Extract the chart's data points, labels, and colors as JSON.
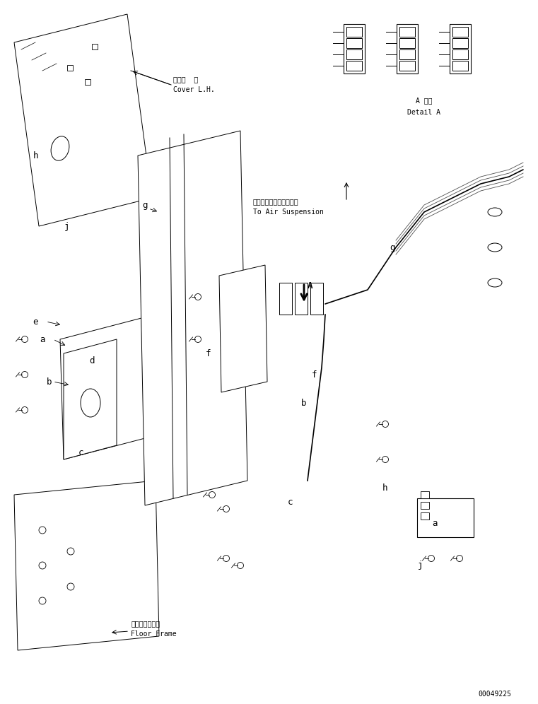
{
  "bg_color": "#ffffff",
  "line_color": "#000000",
  "fig_width": 7.61,
  "fig_height": 9.96,
  "dpi": 100,
  "part_number": "00049225",
  "labels": {
    "cover_lh_jp": "カバー  左",
    "cover_lh_en": "Cover L.H.",
    "air_susp_jp": "エアーサスペンションへ",
    "air_susp_en": "To Air Suspension",
    "floor_frame_jp": "フロアフレーム",
    "floor_frame_en": "Floor Frame",
    "detail_a_jp": "A 詳細",
    "detail_a_en": "Detail A"
  }
}
